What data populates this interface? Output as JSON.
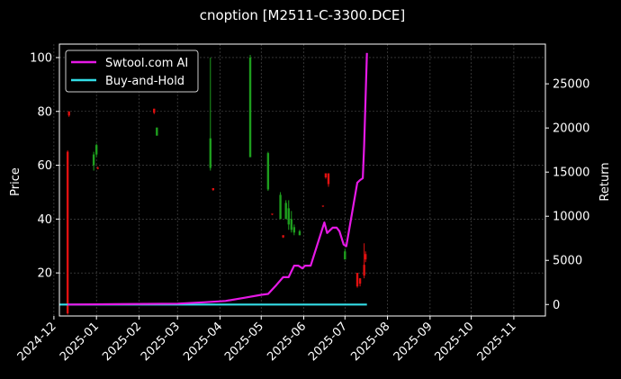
{
  "colors": {
    "background": "#000000",
    "up": "#1e9e1e",
    "down": "#e01010",
    "ai_line": "#e619e6",
    "bh_line": "#33dde6",
    "grid": "#555555",
    "frame": "#ffffff"
  },
  "chart_data": {
    "type": "line",
    "title": "cnoption [M2511-C-3300.DCE]",
    "xlabel": "",
    "ylabel_left": "Price",
    "ylabel_right": "Return",
    "x_range": [
      "2024-12-05",
      "2025-11-24"
    ],
    "ylim_left": [
      4,
      105
    ],
    "ylim_right": [
      -1300,
      29500
    ],
    "left_ticks": [
      20,
      40,
      60,
      80,
      100
    ],
    "right_ticks": [
      0,
      5000,
      10000,
      15000,
      20000,
      25000
    ],
    "x_ticks": [
      "2024-12",
      "2025-01",
      "2025-02",
      "2025-03",
      "2025-04",
      "2025-05",
      "2025-06",
      "2025-07",
      "2025-08",
      "2025-09",
      "2025-10",
      "2025-11"
    ],
    "grid": true,
    "legend_position": "upper-left",
    "candles": [
      {
        "date": "2024-12-11",
        "open": 65,
        "high": 65.5,
        "low": 4.5,
        "close": 5
      },
      {
        "date": "2024-12-12",
        "open": 80,
        "high": 80,
        "low": 78,
        "close": 78.5
      },
      {
        "date": "2024-12-30",
        "open": 60,
        "high": 65,
        "low": 58,
        "close": 64
      },
      {
        "date": "2025-01-01",
        "open": 64,
        "high": 68,
        "low": 63,
        "close": 67.5
      },
      {
        "date": "2025-01-02",
        "open": 59,
        "high": 59.5,
        "low": 58.5,
        "close": 58.7
      },
      {
        "date": "2025-02-12",
        "open": 81,
        "high": 81,
        "low": 79,
        "close": 79.5
      },
      {
        "date": "2025-02-14",
        "open": 71,
        "high": 74,
        "low": 71,
        "close": 74
      },
      {
        "date": "2025-03-25",
        "open": 59,
        "high": 100,
        "low": 58,
        "close": 70
      },
      {
        "date": "2025-03-27",
        "open": 51.5,
        "high": 51.5,
        "low": 50.5,
        "close": 50.8
      },
      {
        "date": "2025-04-23",
        "open": 63,
        "high": 101,
        "low": 63,
        "close": 100
      },
      {
        "date": "2025-05-06",
        "open": 51,
        "high": 65,
        "low": 50.5,
        "close": 64.5
      },
      {
        "date": "2025-05-09",
        "open": 42,
        "high": 42,
        "low": 41.5,
        "close": 41.8
      },
      {
        "date": "2025-05-15",
        "open": 40,
        "high": 50,
        "low": 40,
        "close": 49
      },
      {
        "date": "2025-05-17",
        "open": 34,
        "high": 34,
        "low": 33,
        "close": 33.2
      },
      {
        "date": "2025-05-19",
        "open": 40,
        "high": 47,
        "low": 40,
        "close": 46
      },
      {
        "date": "2025-05-21",
        "open": 38,
        "high": 47,
        "low": 36,
        "close": 44
      },
      {
        "date": "2025-05-23",
        "open": 36,
        "high": 43,
        "low": 35,
        "close": 40
      },
      {
        "date": "2025-05-25",
        "open": 35,
        "high": 38,
        "low": 34,
        "close": 37
      },
      {
        "date": "2025-05-29",
        "open": 34,
        "high": 36,
        "low": 34,
        "close": 35.5
      },
      {
        "date": "2025-06-15",
        "open": 45,
        "high": 45,
        "low": 44.5,
        "close": 44.7
      },
      {
        "date": "2025-06-17",
        "open": 57,
        "high": 57,
        "low": 55,
        "close": 55.5
      },
      {
        "date": "2025-06-19",
        "open": 57,
        "high": 57,
        "low": 52,
        "close": 53
      },
      {
        "date": "2025-07-01",
        "open": 25,
        "high": 29,
        "low": 25,
        "close": 28
      },
      {
        "date": "2025-07-10",
        "open": 20,
        "high": 20,
        "low": 14.5,
        "close": 15
      },
      {
        "date": "2025-07-12",
        "open": 18,
        "high": 18,
        "low": 15,
        "close": 16
      },
      {
        "date": "2025-07-15",
        "open": 23,
        "high": 31,
        "low": 18,
        "close": 19
      },
      {
        "date": "2025-07-16",
        "open": 27,
        "high": 28,
        "low": 24,
        "close": 25
      }
    ],
    "series": [
      {
        "name": "Swtool.com AI",
        "axis": "right",
        "points": [
          [
            "2024-12-11",
            0
          ],
          [
            "2025-03-01",
            100
          ],
          [
            "2025-03-20",
            250
          ],
          [
            "2025-04-05",
            400
          ],
          [
            "2025-04-20",
            800
          ],
          [
            "2025-05-01",
            1100
          ],
          [
            "2025-05-06",
            1200
          ],
          [
            "2025-05-12",
            2200
          ],
          [
            "2025-05-17",
            3100
          ],
          [
            "2025-05-21",
            3100
          ],
          [
            "2025-05-25",
            4400
          ],
          [
            "2025-05-28",
            4400
          ],
          [
            "2025-05-31",
            4100
          ],
          [
            "2025-06-02",
            4400
          ],
          [
            "2025-06-06",
            4400
          ],
          [
            "2025-06-16",
            9300
          ],
          [
            "2025-06-18",
            8100
          ],
          [
            "2025-06-20",
            8400
          ],
          [
            "2025-06-22",
            8700
          ],
          [
            "2025-06-25",
            8700
          ],
          [
            "2025-06-27",
            8300
          ],
          [
            "2025-06-30",
            6800
          ],
          [
            "2025-07-02",
            6600
          ],
          [
            "2025-07-10",
            13800
          ],
          [
            "2025-07-12",
            14100
          ],
          [
            "2025-07-14",
            14300
          ],
          [
            "2025-07-15",
            18000
          ],
          [
            "2025-07-17",
            28500
          ]
        ]
      },
      {
        "name": "Buy-and-Hold",
        "axis": "right",
        "points": [
          [
            "2024-12-05",
            0
          ],
          [
            "2025-07-17",
            0
          ]
        ]
      }
    ]
  }
}
